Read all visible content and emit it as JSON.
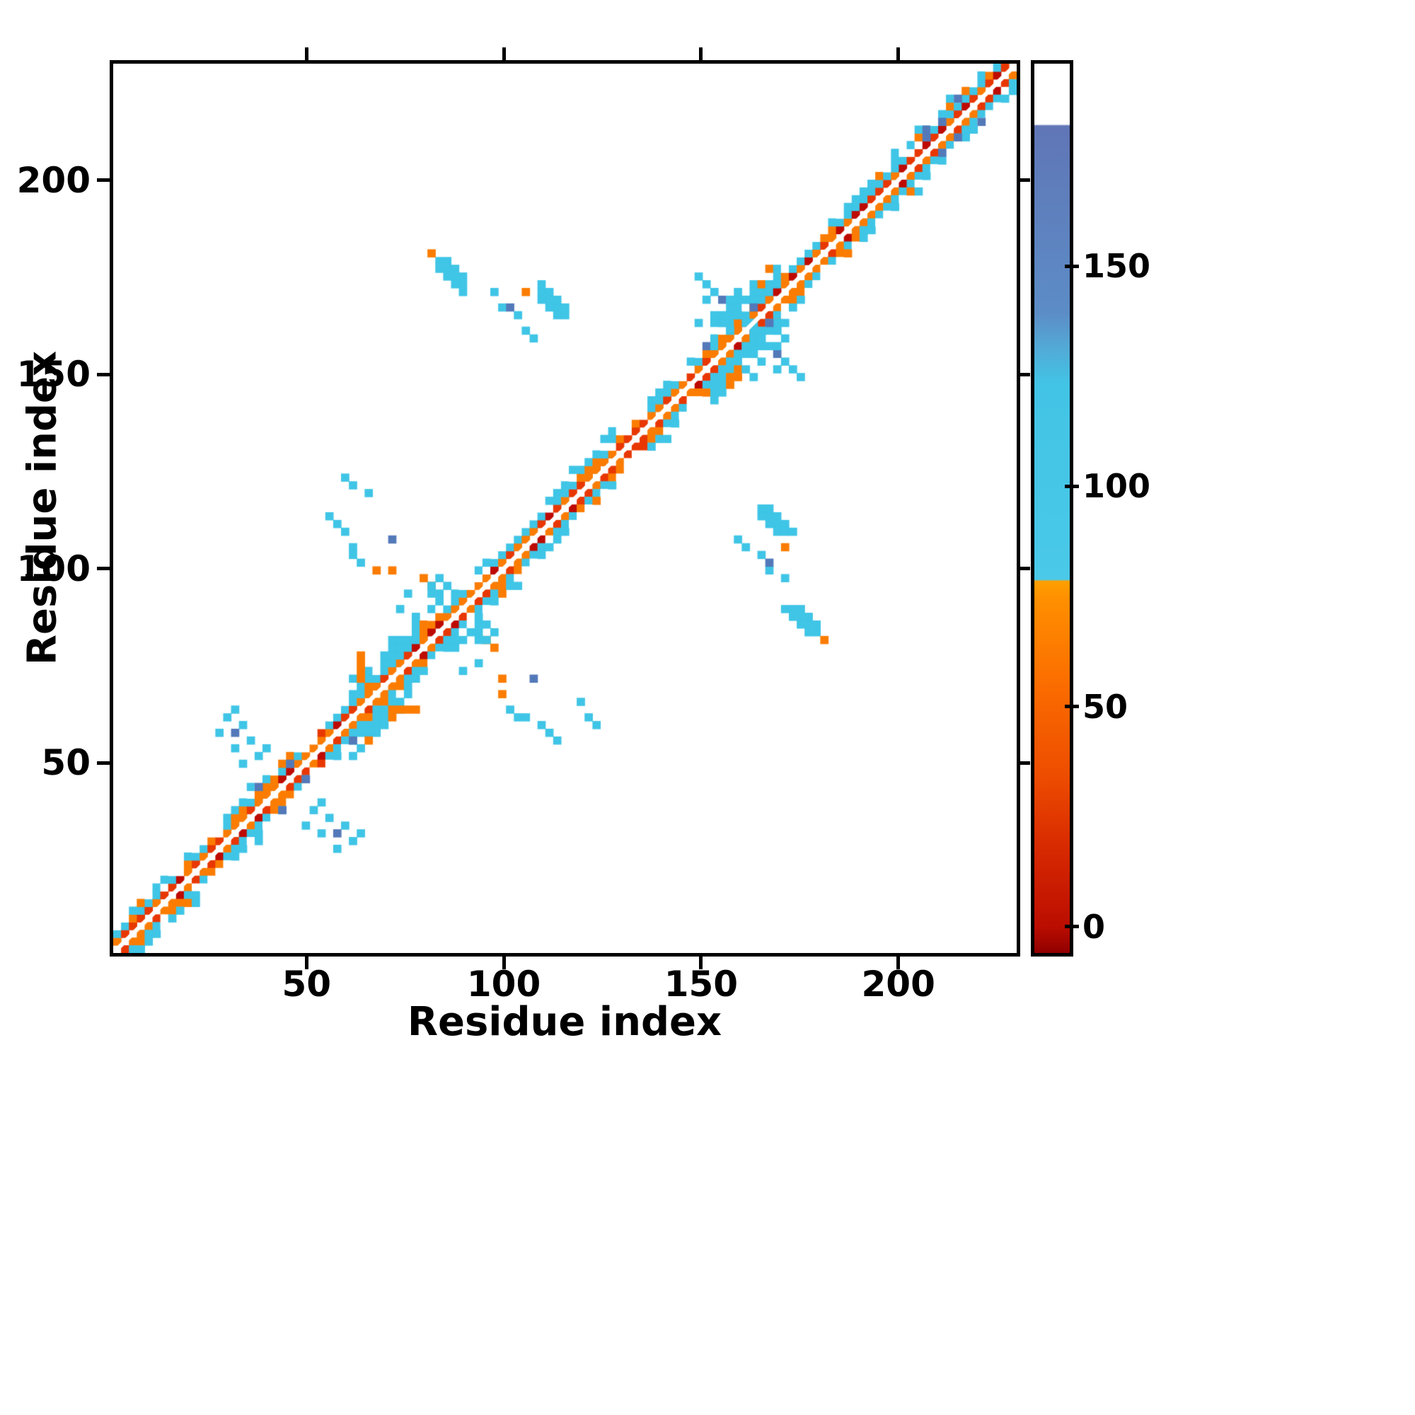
{
  "chart_data": {
    "type": "heatmap",
    "title": "",
    "xlabel": "Residue index",
    "ylabel": "Residue index",
    "axis_range": [
      1,
      230
    ],
    "xticks": [
      50,
      100,
      150,
      200
    ],
    "yticks": [
      50,
      100,
      150,
      200
    ],
    "grid": false,
    "cell_size": 2,
    "seed": 1337,
    "palette": {
      "white": "#ffffff",
      "cyan": "#3fc5e6",
      "blue": "#5379b9",
      "orange": "#fb7c00",
      "red": "#e83700",
      "darkred": "#bd0a00"
    },
    "colorbar": {
      "ticks": [
        0,
        50,
        100,
        150
      ],
      "vmin": -6,
      "vmax": 196,
      "stops": [
        [
          0.0,
          "#900000"
        ],
        [
          0.03,
          "#bb0d00"
        ],
        [
          0.12,
          "#d82a00"
        ],
        [
          0.2,
          "#ee4d00"
        ],
        [
          0.3,
          "#fb6c00"
        ],
        [
          0.4,
          "#ff9000"
        ],
        [
          0.418,
          "#ffa000"
        ],
        [
          0.42,
          "#4ac9e8"
        ],
        [
          0.64,
          "#42c4e6"
        ],
        [
          0.68,
          "#52aad6"
        ],
        [
          0.72,
          "#5c8cc6"
        ],
        [
          0.93,
          "#6076b6"
        ],
        [
          0.932,
          "#ffffff"
        ],
        [
          1.0,
          "#ffffff"
        ]
      ]
    },
    "band": {
      "cyan_segments": [
        [
          1,
          13
        ],
        [
          16,
          24
        ],
        [
          29,
          51
        ],
        [
          55,
          133
        ],
        [
          137,
          181
        ],
        [
          184,
          230
        ]
      ],
      "wide_segments": [
        [
          62,
          79
        ],
        [
          154,
          171
        ]
      ]
    },
    "blobs": [
      {
        "x": 83,
        "y": 179,
        "n": 4,
        "dx": 1,
        "dy": -1,
        "c": "cyan"
      },
      {
        "x": 83,
        "y": 177,
        "n": 4,
        "dx": 1,
        "dy": -1,
        "c": "cyan"
      },
      {
        "x": 85,
        "y": 179,
        "n": 3,
        "dx": 1,
        "dy": -1,
        "c": "cyan"
      },
      {
        "x": 81,
        "y": 180,
        "c": "orange"
      },
      {
        "x": 96,
        "y": 170,
        "c": "cyan"
      },
      {
        "x": 98,
        "y": 167,
        "c": "cyan"
      },
      {
        "x": 100,
        "y": 167,
        "c": "blue"
      },
      {
        "x": 102,
        "y": 164,
        "c": "cyan"
      },
      {
        "x": 104,
        "y": 161,
        "c": "cyan"
      },
      {
        "x": 107,
        "y": 159,
        "c": "cyan"
      },
      {
        "x": 150,
        "y": 168,
        "c": "cyan"
      },
      {
        "x": 152,
        "y": 165,
        "c": "cyan"
      },
      {
        "x": 148,
        "y": 162,
        "c": "cyan"
      },
      {
        "x": 154,
        "y": 169,
        "c": "blue"
      },
      {
        "x": 155,
        "y": 163,
        "n": 2,
        "dx": 1,
        "dy": -1,
        "c": "cyan"
      },
      {
        "x": 157,
        "y": 167,
        "c": "cyan"
      },
      {
        "x": 159,
        "y": 171,
        "n": 2,
        "dx": 1,
        "dy": -1,
        "c": "cyan"
      },
      {
        "x": 162,
        "y": 168,
        "n": 2,
        "dx": 0,
        "dy": 1,
        "c": "cyan"
      },
      {
        "x": 160,
        "y": 163,
        "n": 2,
        "dx": 1,
        "dy": 0,
        "c": "cyan"
      },
      {
        "x": 165,
        "y": 159,
        "c": "cyan"
      },
      {
        "x": 166,
        "y": 162,
        "c": "blue"
      },
      {
        "x": 168,
        "y": 156,
        "c": "cyan"
      },
      {
        "x": 171,
        "y": 152,
        "n": 2,
        "dx": 1,
        "dy": -1,
        "c": "cyan"
      },
      {
        "x": 175,
        "y": 148,
        "c": "cyan"
      },
      {
        "x": 27,
        "y": 57,
        "c": "cyan"
      },
      {
        "x": 28,
        "y": 60,
        "c": "cyan"
      },
      {
        "x": 30,
        "y": 57,
        "c": "blue"
      },
      {
        "x": 32,
        "y": 58,
        "c": "cyan"
      },
      {
        "x": 31,
        "y": 53,
        "c": "cyan"
      },
      {
        "x": 34,
        "y": 55,
        "c": "cyan"
      },
      {
        "x": 36,
        "y": 51,
        "c": "cyan"
      },
      {
        "x": 38,
        "y": 52,
        "c": "cyan"
      },
      {
        "x": 33,
        "y": 48,
        "c": "cyan"
      },
      {
        "x": 30,
        "y": 63,
        "c": "cyan"
      },
      {
        "x": 55,
        "y": 113,
        "c": "cyan"
      },
      {
        "x": 56,
        "y": 110,
        "c": "cyan"
      },
      {
        "x": 58,
        "y": 108,
        "c": "cyan"
      },
      {
        "x": 60,
        "y": 105,
        "c": "cyan"
      },
      {
        "x": 61,
        "y": 102,
        "c": "cyan"
      },
      {
        "x": 63,
        "y": 100,
        "c": "cyan"
      },
      {
        "x": 66,
        "y": 98,
        "c": "orange"
      },
      {
        "x": 70,
        "y": 106,
        "c": "blue"
      },
      {
        "x": 70,
        "y": 98,
        "c": "orange"
      },
      {
        "x": 165,
        "y": 114,
        "n": 4,
        "dx": 1,
        "dy": -1,
        "c": "cyan"
      },
      {
        "x": 167,
        "y": 114,
        "n": 4,
        "dx": 1,
        "dy": -1,
        "c": "cyan"
      },
      {
        "x": 165,
        "y": 112,
        "n": 3,
        "dx": 1,
        "dy": -1,
        "c": "cyan"
      },
      {
        "x": 171,
        "y": 104,
        "c": "orange"
      },
      {
        "x": 78,
        "y": 96,
        "n": 2,
        "dx": 1,
        "dy": -1,
        "c": "orange"
      },
      {
        "x": 80,
        "y": 95,
        "n": 2,
        "dx": 1,
        "dy": -1,
        "c": "cyan"
      },
      {
        "x": 80,
        "y": 93,
        "n": 2,
        "dx": 1,
        "dy": -1,
        "c": "cyan"
      },
      {
        "x": 82,
        "y": 97,
        "n": 2,
        "dx": 1,
        "dy": -1,
        "c": "cyan"
      },
      {
        "x": 75,
        "y": 92,
        "c": "cyan"
      },
      {
        "x": 73,
        "y": 89,
        "c": "cyan"
      },
      {
        "x": 63,
        "y": 70,
        "n": 4,
        "dx": 0,
        "dy": 1,
        "c": "orange"
      },
      {
        "x": 119,
        "y": 64,
        "c": "cyan"
      },
      {
        "x": 121,
        "y": 61,
        "c": "cyan"
      },
      {
        "x": 123,
        "y": 58,
        "c": "cyan"
      },
      {
        "x": 206,
        "y": 211,
        "c": "blue"
      },
      {
        "x": 210,
        "y": 215,
        "c": "blue"
      },
      {
        "x": 215,
        "y": 220,
        "c": "blue"
      },
      {
        "x": 36,
        "y": 42,
        "c": "blue"
      },
      {
        "x": 44,
        "y": 49,
        "c": "blue"
      }
    ]
  }
}
